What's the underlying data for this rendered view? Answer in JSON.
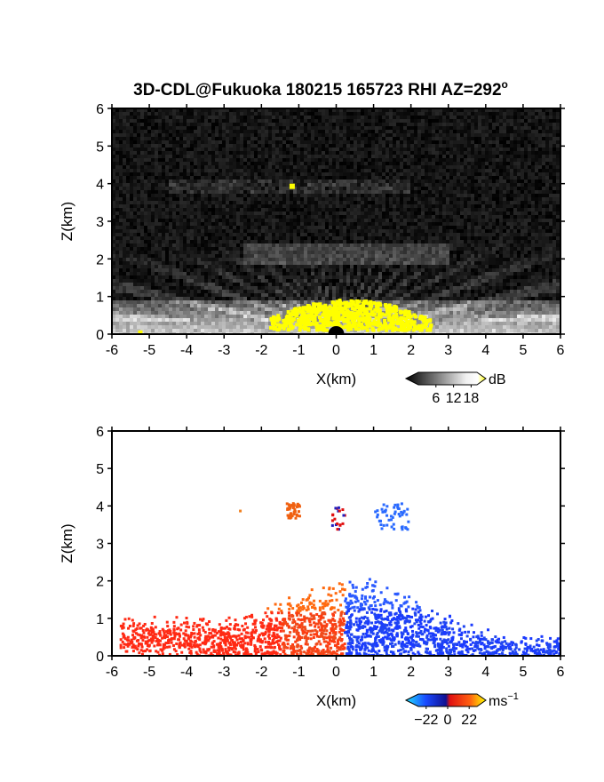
{
  "title": "3D-CDL@Fukuoka 180215 165723 RHI AZ=292",
  "title_degree_mark": "o",
  "chart_data": [
    {
      "type": "heatmap",
      "xlabel": "X(km)",
      "ylabel": "Z(km)",
      "xlim": [
        -6,
        6
      ],
      "ylim": [
        0,
        6
      ],
      "xticks": [
        "-6",
        "-5",
        "-4",
        "-3",
        "-2",
        "-1",
        "0",
        "1",
        "2",
        "3",
        "4",
        "5",
        "6"
      ],
      "yticks": [
        "0",
        "1",
        "2",
        "3",
        "4",
        "5",
        "6"
      ],
      "colorbar": {
        "unit": "dB",
        "ticks": [
          "6",
          "12",
          "18"
        ],
        "range": [
          0,
          20
        ],
        "colormap": "grayscale-to-yellow"
      },
      "features": [
        {
          "name": "strong echo near surface",
          "x": [
            -1.8,
            2.5
          ],
          "z": [
            0.1,
            1.0
          ],
          "value": 20
        },
        {
          "name": "low-level echo layer",
          "x": [
            -6,
            6
          ],
          "z": [
            0,
            0.9
          ],
          "value": 10
        },
        {
          "name": "layer near 2 km",
          "x": [
            -2.5,
            3.0
          ],
          "z": [
            1.8,
            2.4
          ],
          "value": 5
        },
        {
          "name": "layer near 4 km",
          "x": [
            -4.5,
            2.0
          ],
          "z": [
            3.7,
            4.1
          ],
          "value": 4
        },
        {
          "name": "bright spot",
          "x": [
            -1.2
          ],
          "z": [
            3.9
          ],
          "value": 20
        }
      ]
    },
    {
      "type": "heatmap",
      "xlabel": "X(km)",
      "ylabel": "Z(km)",
      "xlim": [
        -6,
        6
      ],
      "ylim": [
        0,
        6
      ],
      "xticks": [
        "-6",
        "-5",
        "-4",
        "-3",
        "-2",
        "-1",
        "0",
        "1",
        "2",
        "3",
        "4",
        "5",
        "6"
      ],
      "yticks": [
        "0",
        "1",
        "2",
        "3",
        "4",
        "5",
        "6"
      ],
      "colorbar": {
        "unit": "ms",
        "unit_superscript": "−1",
        "ticks": [
          "−22",
          "0",
          "22"
        ],
        "range": [
          -30,
          30
        ],
        "colormap": "blue-to-red"
      },
      "features": [
        {
          "name": "approaching (red) region",
          "x": [
            -5.8,
            0.2
          ],
          "z": [
            0,
            2.2
          ],
          "value": 12
        },
        {
          "name": "receding (blue) region",
          "x": [
            0.2,
            6.0
          ],
          "z": [
            0,
            2.3
          ],
          "value": -12
        },
        {
          "name": "echoes near 4 km",
          "x": [
            -1.4,
            2.0
          ],
          "z": [
            3.4,
            4.1
          ],
          "value": 0
        }
      ]
    }
  ],
  "colors": {
    "background": "#ffffff",
    "echo_yellow": "#ffff00",
    "doppler_red": "#ff2a14",
    "doppler_blue": "#1a4aff"
  }
}
